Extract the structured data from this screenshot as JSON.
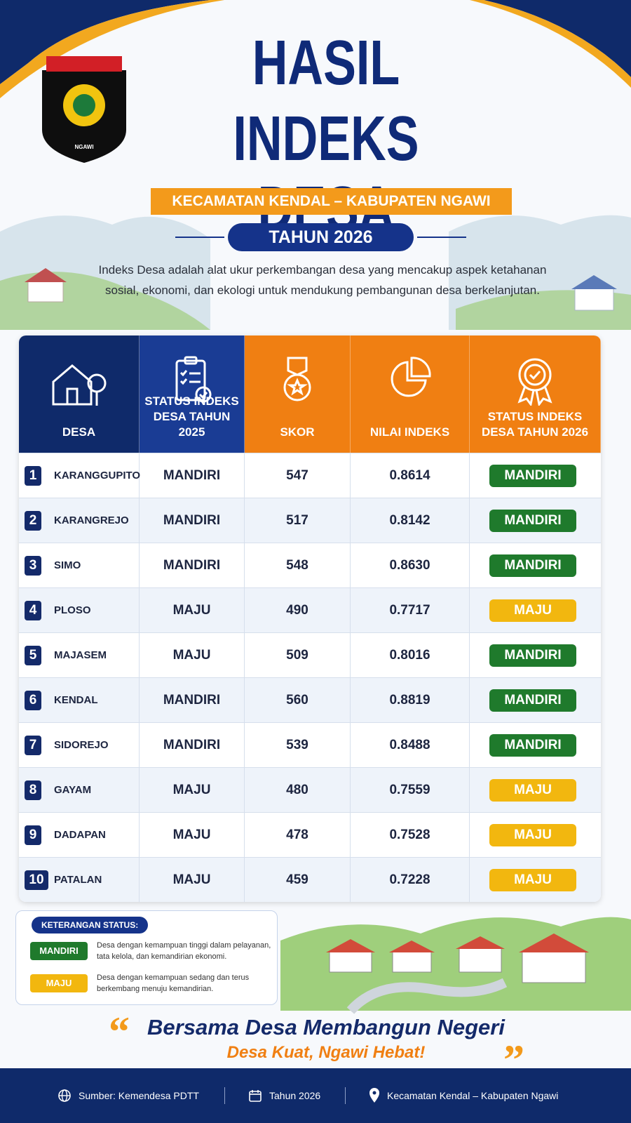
{
  "logo": {
    "text": "NGAWI"
  },
  "header": {
    "title_line1": "HASIL",
    "title_line2": "INDEKS DESA",
    "subtitle": "KECAMATAN KENDAL – KABUPATEN NGAWI",
    "year": "TAHUN 2026",
    "description": "Indeks Desa adalah alat ukur perkembangan desa yang mencakup aspek ketahanan sosial, ekonomi, dan ekologi untuk mendukung pembangunan desa berkelanjutan."
  },
  "table": {
    "columns": [
      "DESA",
      "STATUS INDEKS DESA TAHUN 2025",
      "SKOR",
      "NILAI INDEKS",
      "STATUS INDEKS DESA TAHUN 2026"
    ],
    "rows": [
      [
        1,
        "KARANGGUPITO",
        "MANDIRI",
        547,
        "0.8614",
        "MANDIRI"
      ],
      [
        2,
        "KARANGREJO",
        "MANDIRI",
        517,
        "0.8142",
        "MANDIRI"
      ],
      [
        3,
        "SIMO",
        "MANDIRI",
        548,
        "0.8630",
        "MANDIRI"
      ],
      [
        4,
        "PLOSO",
        "MAJU",
        490,
        "0.7717",
        "MAJU"
      ],
      [
        5,
        "MAJASEM",
        "MAJU",
        509,
        "0.8016",
        "MANDIRI"
      ],
      [
        6,
        "KENDAL",
        "MANDIRI",
        560,
        "0.8819",
        "MANDIRI"
      ],
      [
        7,
        "SIDOREJO",
        "MANDIRI",
        539,
        "0.8488",
        "MANDIRI"
      ],
      [
        8,
        "GAYAM",
        "MAJU",
        480,
        "0.7559",
        "MAJU"
      ],
      [
        9,
        "DADAPAN",
        "MAJU",
        478,
        "0.7528",
        "MAJU"
      ],
      [
        10,
        "PATALAN",
        "MAJU",
        459,
        "0.7228",
        "MAJU"
      ]
    ]
  },
  "legend": {
    "title": "KETERANGAN STATUS:",
    "items": [
      {
        "label": "MANDIRI",
        "color": "#1f7a2c",
        "description": "Desa dengan kemampuan tinggi dalam pelayanan, tata kelola, dan kemandirian ekonomi."
      },
      {
        "label": "MAJU",
        "color": "#f2b70f",
        "description": "Desa dengan kemampuan sedang dan terus berkembang menuju kemandirian."
      }
    ]
  },
  "quote": {
    "open": "“",
    "line1": "Bersama Desa Membangun Negeri",
    "line2": "Desa Kuat, Ngawi Hebat!",
    "close": "”"
  },
  "footer": [
    "Sumber: Kemendesa PDTT",
    "Tahun 2026",
    "Kecamatan Kendal – Kabupaten Ngawi"
  ]
}
